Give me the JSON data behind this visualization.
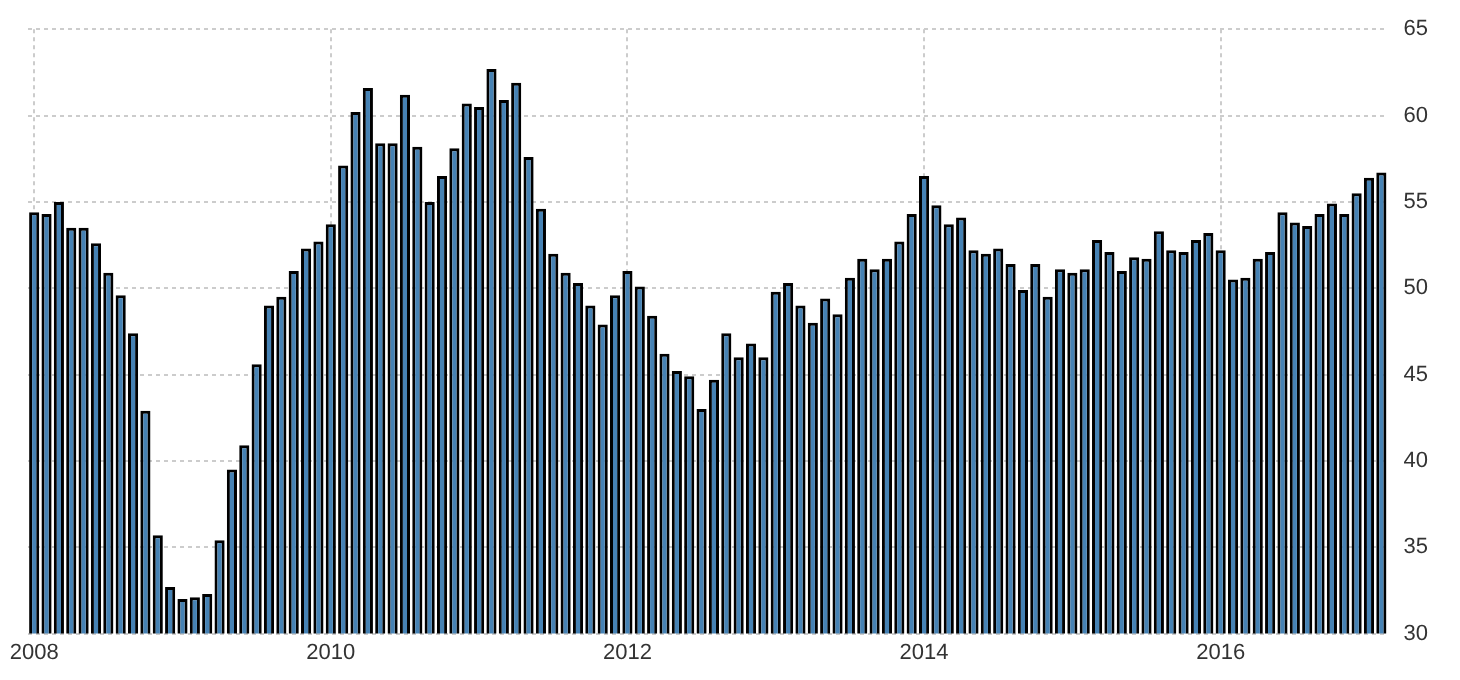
{
  "chart_data": {
    "type": "bar",
    "categories": [
      "2008",
      null,
      null,
      null,
      null,
      null,
      null,
      null,
      null,
      null,
      null,
      null,
      null,
      null,
      null,
      null,
      null,
      null,
      null,
      null,
      null,
      null,
      null,
      null,
      "2010",
      null,
      null,
      null,
      null,
      null,
      null,
      null,
      null,
      null,
      null,
      null,
      null,
      null,
      null,
      null,
      null,
      null,
      null,
      null,
      null,
      null,
      null,
      null,
      "2012",
      null,
      null,
      null,
      null,
      null,
      null,
      null,
      null,
      null,
      null,
      null,
      null,
      null,
      null,
      null,
      null,
      null,
      null,
      null,
      null,
      null,
      null,
      null,
      "2014",
      null,
      null,
      null,
      null,
      null,
      null,
      null,
      null,
      null,
      null,
      null,
      null,
      null,
      null,
      null,
      null,
      null,
      null,
      null,
      null,
      null,
      null,
      null,
      "2016",
      null,
      null,
      null,
      null,
      null,
      null,
      null,
      null,
      null,
      null,
      null,
      null,
      null
    ],
    "values": [
      54.4,
      54.3,
      55.0,
      53.5,
      53.5,
      52.6,
      50.9,
      49.6,
      47.4,
      42.9,
      35.7,
      32.7,
      32.0,
      32.1,
      32.3,
      35.4,
      39.5,
      40.9,
      45.6,
      49.0,
      49.5,
      51.0,
      52.3,
      52.7,
      53.7,
      57.1,
      60.2,
      61.6,
      58.4,
      58.4,
      61.2,
      58.2,
      55.0,
      56.5,
      58.1,
      60.7,
      60.5,
      62.7,
      60.9,
      61.9,
      57.6,
      54.6,
      52.0,
      50.9,
      50.3,
      49.0,
      47.9,
      49.6,
      51.0,
      50.1,
      48.4,
      46.2,
      45.2,
      44.9,
      43.0,
      44.7,
      47.4,
      46.0,
      46.8,
      46.0,
      49.8,
      50.3,
      49.0,
      48.0,
      49.4,
      48.5,
      50.6,
      51.7,
      51.1,
      51.7,
      52.7,
      54.3,
      56.5,
      54.8,
      53.7,
      54.1,
      52.2,
      52.0,
      52.3,
      51.4,
      49.9,
      51.4,
      49.5,
      51.1,
      50.9,
      51.1,
      52.8,
      52.1,
      51.0,
      51.8,
      51.7,
      53.3,
      52.2,
      52.1,
      52.8,
      53.2,
      52.2,
      50.5,
      50.6,
      51.7,
      52.1,
      54.4,
      53.8,
      53.6,
      54.3,
      54.9,
      54.3,
      55.5,
      56.4,
      56.7
    ],
    "color": "#4682b4",
    "ylim": [
      30,
      65
    ],
    "yticks": [
      30,
      35,
      40,
      45,
      50,
      55,
      60,
      65
    ],
    "grid": true,
    "legend": false
  }
}
